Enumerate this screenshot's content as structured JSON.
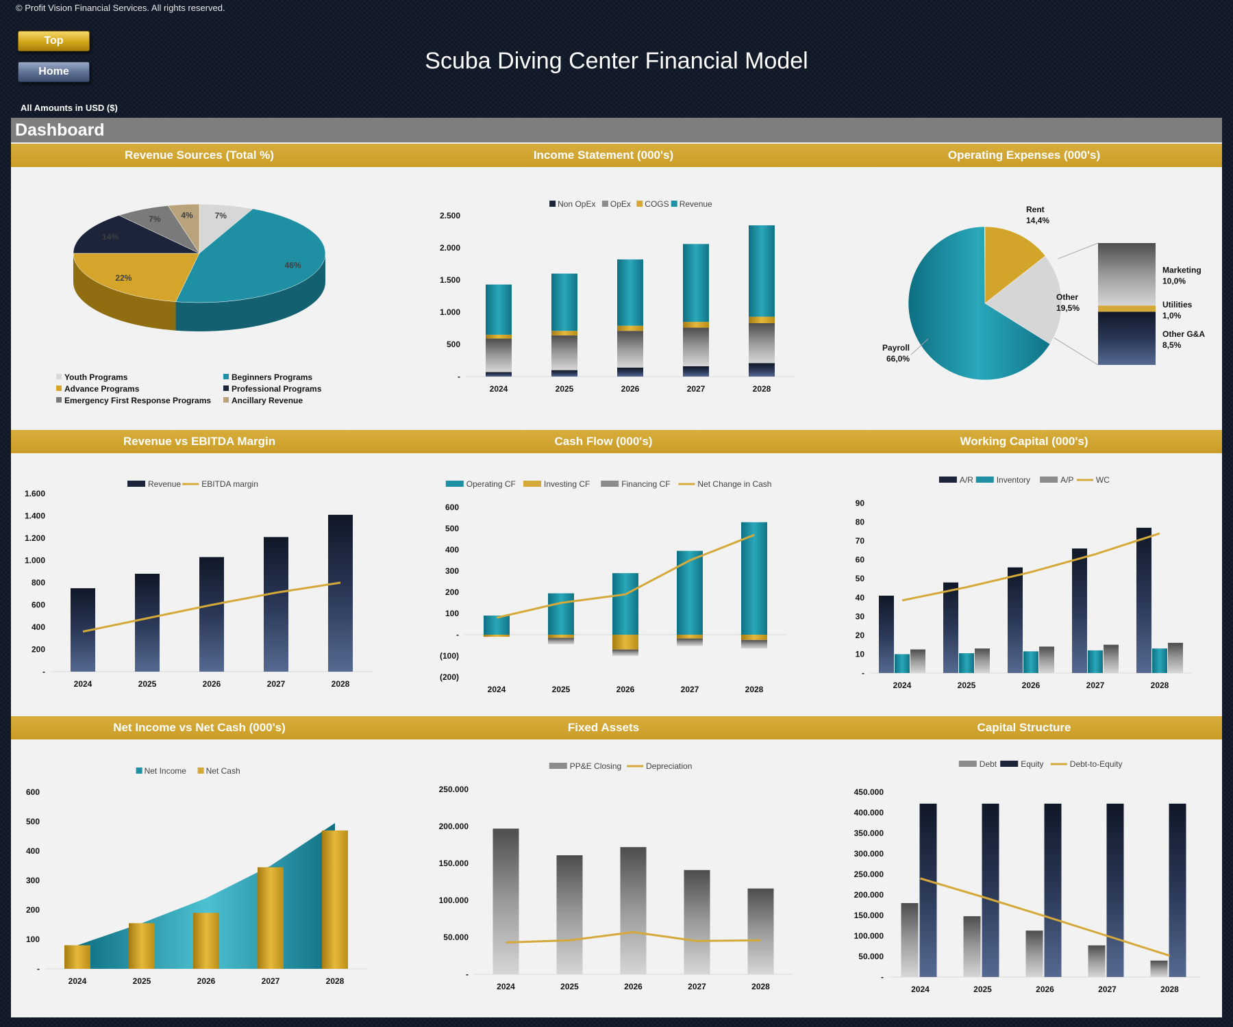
{
  "header": {
    "copyright": "© Profit Vision Financial Services. All rights reserved.",
    "top_button": "Top",
    "home_button": "Home",
    "title": "Scuba Diving Center Financial Model",
    "amounts_label": "All Amounts in  USD ($)",
    "dashboard_label": "Dashboard"
  },
  "panels": {
    "revenue_sources": "Revenue Sources (Total %)",
    "income_statement": "Income Statement (000's)",
    "operating_expenses": "Operating Expenses (000's)",
    "revenue_vs_ebitda": "Revenue vs EBITDA Margin",
    "cash_flow": "Cash Flow (000's)",
    "working_capital": "Working Capital (000's)",
    "net_income_vs_cash": "Net Income vs Net Cash (000's)",
    "fixed_assets": "Fixed Assets",
    "capital_structure": "Capital Structure"
  },
  "colors": {
    "gold": "#d4a93a",
    "teal": "#1f8fa3",
    "navy": "#1b2438",
    "gray": "#8c8c8c",
    "light": "#d0d0d0"
  },
  "chart_data": [
    {
      "id": "revenue_sources",
      "type": "pie",
      "labels": [
        "Youth Programs",
        "Beginners Programs",
        "Advance Programs",
        "Professional Programs",
        "Emergency First Response Programs",
        "Ancillary Revenue"
      ],
      "values": [
        7,
        46,
        22,
        14,
        7,
        4
      ],
      "value_labels": [
        "7%",
        "46%",
        "22%",
        "14%",
        "7%",
        "4%"
      ],
      "colors": [
        "#d7d7d7",
        "#1f8fa3",
        "#d4a52a",
        "#1b2438",
        "#7a7a7a",
        "#b8a37a"
      ]
    },
    {
      "id": "income_statement",
      "type": "bar",
      "stacked": true,
      "categories": [
        "2024",
        "2025",
        "2026",
        "2027",
        "2028"
      ],
      "series": [
        {
          "name": "Non OpEx",
          "values": [
            70,
            100,
            140,
            160,
            210
          ]
        },
        {
          "name": "OpEx",
          "values": [
            520,
            540,
            570,
            600,
            620
          ]
        },
        {
          "name": "COGS",
          "values": [
            60,
            70,
            80,
            90,
            100
          ]
        },
        {
          "name": "Revenue",
          "values": [
            780,
            890,
            1030,
            1210,
            1420
          ]
        }
      ],
      "yticks": [
        "-",
        "500",
        "1.000",
        "1.500",
        "2.000",
        "2.500"
      ],
      "ylim": [
        0,
        2500
      ]
    },
    {
      "id": "operating_expenses",
      "type": "pie",
      "labels": [
        "Payroll",
        "Rent",
        "Other"
      ],
      "values": [
        66.0,
        14.4,
        19.5
      ],
      "value_labels": [
        "66,0%",
        "14,4%",
        "19,5%"
      ],
      "breakdown": {
        "labels": [
          "Marketing",
          "Utilities",
          "Other G&A"
        ],
        "values": [
          10.0,
          1.0,
          8.5
        ],
        "value_labels": [
          "10,0%",
          "1,0%",
          "8,5%"
        ]
      }
    },
    {
      "id": "revenue_vs_ebitda",
      "type": "bar",
      "categories": [
        "2024",
        "2025",
        "2026",
        "2027",
        "2028"
      ],
      "series": [
        {
          "name": "Revenue",
          "values": [
            750,
            880,
            1030,
            1210,
            1410
          ]
        },
        {
          "name": "EBITDA margin",
          "values": [
            360,
            480,
            600,
            710,
            800
          ]
        }
      ],
      "yticks": [
        "-",
        "200",
        "400",
        "600",
        "800",
        "1.000",
        "1.200",
        "1.400",
        "1.600"
      ],
      "ylim": [
        0,
        1600
      ]
    },
    {
      "id": "cash_flow",
      "type": "bar",
      "categories": [
        "2024",
        "2025",
        "2026",
        "2027",
        "2028"
      ],
      "series": [
        {
          "name": "Operating CF",
          "values": [
            90,
            195,
            290,
            395,
            530
          ]
        },
        {
          "name": "Investing CF",
          "values": [
            -10,
            -15,
            -70,
            -18,
            -25
          ]
        },
        {
          "name": "Financing CF",
          "values": [
            0,
            -30,
            -30,
            -35,
            -40
          ]
        },
        {
          "name": "Net Change in Cash",
          "values": [
            80,
            150,
            190,
            350,
            470
          ]
        }
      ],
      "yticks": [
        "(200)",
        "(100)",
        "-",
        "100",
        "200",
        "300",
        "400",
        "500",
        "600"
      ],
      "ylim": [
        -200,
        600
      ]
    },
    {
      "id": "working_capital",
      "type": "bar",
      "categories": [
        "2024",
        "2025",
        "2026",
        "2027",
        "2028"
      ],
      "series": [
        {
          "name": "A/R",
          "values": [
            41,
            48,
            56,
            66,
            77
          ]
        },
        {
          "name": "Inventory",
          "values": [
            10,
            10.5,
            11.5,
            12,
            13
          ]
        },
        {
          "name": "A/P",
          "values": [
            12.5,
            13,
            14,
            15,
            16
          ]
        },
        {
          "name": "WC",
          "values": [
            38.5,
            45.5,
            53.5,
            63,
            74
          ]
        }
      ],
      "yticks": [
        "-",
        "10",
        "20",
        "30",
        "40",
        "50",
        "60",
        "70",
        "80",
        "90"
      ],
      "ylim": [
        0,
        90
      ]
    },
    {
      "id": "net_income_vs_net_cash",
      "type": "area",
      "categories": [
        "2024",
        "2025",
        "2026",
        "2027",
        "2028"
      ],
      "series": [
        {
          "name": "Net Income",
          "values": [
            80,
            155,
            240,
            350,
            495
          ]
        },
        {
          "name": "Net Cash",
          "values": [
            80,
            155,
            190,
            345,
            470
          ]
        }
      ],
      "yticks": [
        "-",
        "100",
        "200",
        "300",
        "400",
        "500",
        "600"
      ],
      "ylim": [
        0,
        600
      ]
    },
    {
      "id": "fixed_assets",
      "type": "bar",
      "categories": [
        "2024",
        "2025",
        "2026",
        "2027",
        "2028"
      ],
      "series": [
        {
          "name": "PP&E Closing",
          "values": [
            197000,
            161000,
            172000,
            141000,
            116000
          ]
        },
        {
          "name": "Depreciation",
          "values": [
            43000,
            46000,
            57000,
            45000,
            46000
          ]
        }
      ],
      "yticks": [
        "-",
        "50.000",
        "100.000",
        "150.000",
        "200.000",
        "250.000"
      ],
      "ylim": [
        0,
        250000
      ]
    },
    {
      "id": "capital_structure",
      "type": "bar",
      "categories": [
        "2024",
        "2025",
        "2026",
        "2027",
        "2028"
      ],
      "series": [
        {
          "name": "Debt",
          "values": [
            180000,
            148000,
            113000,
            77000,
            40000
          ]
        },
        {
          "name": "Equity",
          "values": [
            422000,
            422000,
            422000,
            422000,
            422000
          ]
        },
        {
          "name": "Debt-to-Equity",
          "values": [
            240000,
            195000,
            148000,
            100000,
            52000
          ]
        }
      ],
      "yticks": [
        "-",
        "50.000",
        "100.000",
        "150.000",
        "200.000",
        "250.000",
        "300.000",
        "350.000",
        "400.000",
        "450.000"
      ],
      "ylim": [
        0,
        450000
      ]
    }
  ]
}
